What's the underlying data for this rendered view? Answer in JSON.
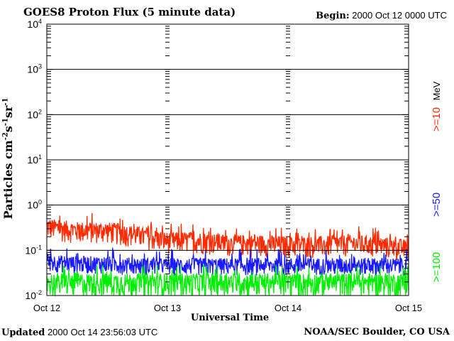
{
  "header": {
    "title": "GOES8 Proton Flux (5 minute data)",
    "begin_label": "Begin:",
    "begin_value": "2000 Oct 12 0000 UTC"
  },
  "footer": {
    "updated_label": "Updated",
    "updated_value": "2000 Oct 14 23:56:03 UTC",
    "credit": "NOAA/SEC Boulder, CO USA"
  },
  "colors": {
    "ge10": "#ff2a00",
    "ge50": "#1a1aff",
    "ge100": "#00ee00"
  },
  "chart_data": {
    "type": "line",
    "title": "GOES8 Proton Flux (5 minute data)",
    "xlabel": "Universal Time",
    "ylabel": {
      "base": "Particles cm",
      "e1": "-2",
      "mid1": "s",
      "e2": "-1",
      "mid2": "sr",
      "e3": "-1"
    },
    "y_scale": "log",
    "ylim": [
      0.01,
      10000
    ],
    "yticks": [
      {
        "base": "10",
        "exp": "-2",
        "value": 0.01
      },
      {
        "base": "10",
        "exp": "-1",
        "value": 0.1
      },
      {
        "base": "10",
        "exp": "0",
        "value": 1
      },
      {
        "base": "10",
        "exp": "1",
        "value": 10
      },
      {
        "base": "10",
        "exp": "2",
        "value": 100
      },
      {
        "base": "10",
        "exp": "3",
        "value": 1000
      },
      {
        "base": "10",
        "exp": "4",
        "value": 10000
      }
    ],
    "xlim": [
      "2000-10-12 00:00",
      "2000-10-15 00:00"
    ],
    "xticks": [
      "Oct 12",
      "Oct 13",
      "Oct 14",
      "Oct 15"
    ],
    "grid": true,
    "legend_placement": "right, vertical",
    "legend": [
      {
        "label": ">=10",
        "color": "#ff2a00"
      },
      {
        "label": ">=50",
        "color": "#1a1aff"
      },
      {
        "label": ">=100",
        "color": "#00ee00"
      }
    ],
    "legend_unit": "MeV",
    "series": [
      {
        "name": ">=10",
        "color": "#ff2a00",
        "x": [
          "2000-10-12 00:00",
          "2000-10-12 06:00",
          "2000-10-12 12:00",
          "2000-10-12 18:00",
          "2000-10-13 00:00",
          "2000-10-13 06:00",
          "2000-10-13 12:00",
          "2000-10-13 18:00",
          "2000-10-14 00:00",
          "2000-10-14 06:00",
          "2000-10-14 12:00",
          "2000-10-14 18:00",
          "2000-10-15 00:00"
        ],
        "y": [
          0.3,
          0.25,
          0.25,
          0.2,
          0.15,
          0.15,
          0.13,
          0.13,
          0.12,
          0.12,
          0.13,
          0.12,
          0.1
        ]
      },
      {
        "name": ">=50",
        "color": "#1a1aff",
        "x": [
          "2000-10-12 00:00",
          "2000-10-12 06:00",
          "2000-10-12 12:00",
          "2000-10-12 18:00",
          "2000-10-13 00:00",
          "2000-10-13 06:00",
          "2000-10-13 12:00",
          "2000-10-13 18:00",
          "2000-10-14 00:00",
          "2000-10-14 06:00",
          "2000-10-14 12:00",
          "2000-10-14 18:00",
          "2000-10-15 00:00"
        ],
        "y": [
          0.06,
          0.055,
          0.055,
          0.05,
          0.05,
          0.05,
          0.05,
          0.05,
          0.05,
          0.05,
          0.05,
          0.05,
          0.05
        ]
      },
      {
        "name": ">=100",
        "color": "#00ee00",
        "x": [
          "2000-10-12 00:00",
          "2000-10-12 06:00",
          "2000-10-12 12:00",
          "2000-10-12 18:00",
          "2000-10-13 00:00",
          "2000-10-13 06:00",
          "2000-10-13 12:00",
          "2000-10-13 18:00",
          "2000-10-14 00:00",
          "2000-10-14 06:00",
          "2000-10-14 12:00",
          "2000-10-14 18:00",
          "2000-10-15 00:00"
        ],
        "y": [
          0.025,
          0.025,
          0.025,
          0.025,
          0.025,
          0.025,
          0.025,
          0.025,
          0.025,
          0.025,
          0.025,
          0.025,
          0.025
        ]
      }
    ]
  }
}
